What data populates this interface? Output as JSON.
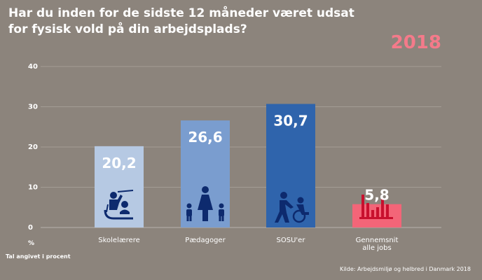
{
  "chart_data": {
    "type": "bar",
    "title": "Har du inden for de sidste 12 måneder været udsat for fysisk vold på din arbejdsplads?",
    "year": "2018",
    "categories": [
      "Skolelærere",
      "Pædagoger",
      "SOSU'er",
      "Gennemsnit\nalle jobs"
    ],
    "values": [
      20.2,
      26.6,
      30.7,
      5.8
    ],
    "value_labels": [
      "20,2",
      "26,6",
      "30,7",
      "5,8"
    ],
    "bar_colors": [
      "#b6c9e3",
      "#7a9dcf",
      "#2f64ac",
      "#f36578"
    ],
    "icons": [
      "teacher-icon",
      "family-icon",
      "caregiver-wheelchair-icon",
      "bar-chart-icon"
    ],
    "icon_colors": [
      "#0d2a6e",
      "#0d2a6e",
      "#0d2a6e",
      "#c8102e"
    ],
    "ylabel": "%",
    "yticks": [
      0,
      10,
      20,
      30,
      40
    ],
    "ylim": [
      0,
      40
    ],
    "grid": true,
    "note": "Tal angivet i procent",
    "source": "Kilde: Arbejdsmiljø og helbred i Danmark 2018",
    "colors": {
      "background": "#8c847c",
      "grid": "#a39c95",
      "text": "#ffffff",
      "accent": "#f47a8a"
    }
  }
}
